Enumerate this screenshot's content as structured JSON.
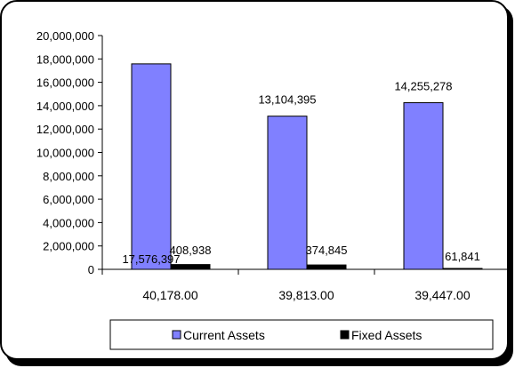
{
  "chart_data": {
    "type": "bar",
    "title": "",
    "xlabel": "",
    "ylabel": "",
    "categories": [
      "40,178.00",
      "39,813.00",
      "39,447.00"
    ],
    "series": [
      {
        "name": "Current Assets",
        "color": "#8080ff",
        "values": [
          17576397,
          13104395,
          14255278
        ],
        "labels": [
          "17,576,397",
          "13,104,395",
          "14,255,278"
        ]
      },
      {
        "name": "Fixed Assets",
        "color": "#000000",
        "values": [
          408938,
          374845,
          61841
        ],
        "labels": [
          "408,938",
          "374,845",
          "61,841"
        ]
      }
    ],
    "ylim": [
      0,
      20000000
    ],
    "yticks": [
      0,
      2000000,
      4000000,
      6000000,
      8000000,
      10000000,
      12000000,
      14000000,
      16000000,
      18000000,
      20000000
    ],
    "ytick_labels": [
      "0",
      "2,000,000",
      "4,000,000",
      "6,000,000",
      "8,000,000",
      "10,000,000",
      "12,000,000",
      "14,000,000",
      "16,000,000",
      "18,000,000",
      "20,000,000"
    ],
    "grid": false,
    "legend": "bottom"
  }
}
